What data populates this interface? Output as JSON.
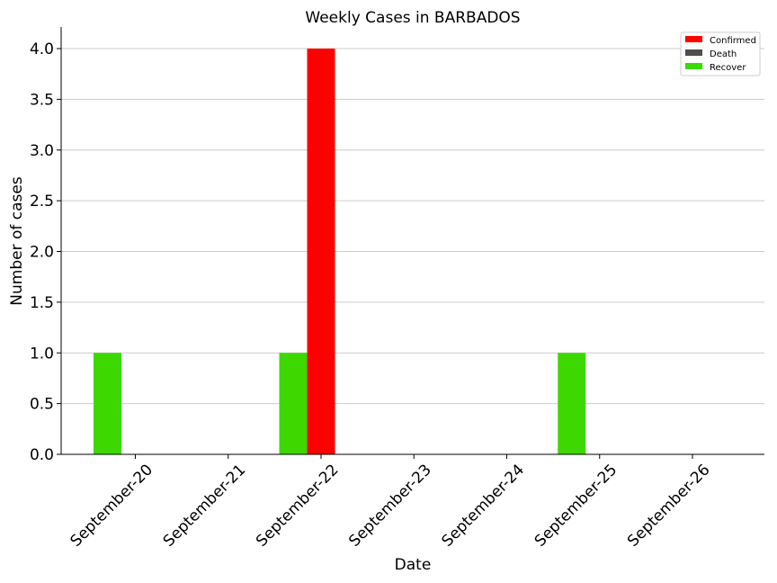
{
  "chart_data": {
    "type": "bar",
    "title": "Weekly Cases in BARBADOS",
    "xlabel": "Date",
    "ylabel": "Number of cases",
    "categories": [
      "September-20",
      "September-21",
      "September-22",
      "September-23",
      "September-24",
      "September-25",
      "September-26"
    ],
    "series": [
      {
        "name": "Confirmed",
        "color": "#ff0000",
        "values": [
          0,
          0,
          4,
          0,
          0,
          0,
          0
        ]
      },
      {
        "name": "Death",
        "color": "#4d4d4d",
        "values": [
          0,
          0,
          0,
          0,
          0,
          0,
          0
        ]
      },
      {
        "name": "Recover",
        "color": "#3cd800",
        "values": [
          1,
          0,
          1,
          0,
          0,
          1,
          0
        ]
      }
    ],
    "ylim": [
      0,
      4.2
    ],
    "yticks": [
      "0.0",
      "0.5",
      "1.0",
      "1.5",
      "2.0",
      "2.5",
      "3.0",
      "3.5",
      "4.0"
    ],
    "grid": "horizontal",
    "legend_position": "top-right"
  }
}
